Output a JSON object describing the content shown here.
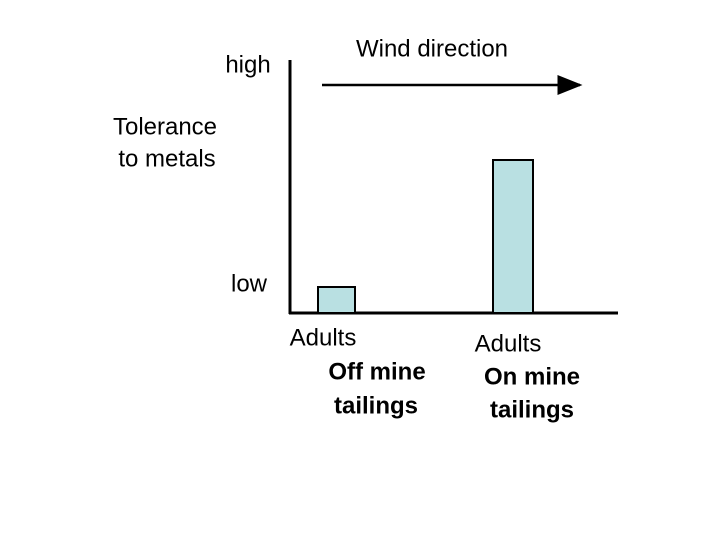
{
  "axis_labels": {
    "high": "high",
    "low": "low",
    "y_title": [
      "Tolerance",
      "to metals"
    ]
  },
  "wind": {
    "label": "Wind direction"
  },
  "groups": [
    {
      "label": [
        "Adults",
        "Off mine",
        "tailings"
      ]
    },
    {
      "label": [
        "Adults",
        "On mine",
        "tailings"
      ]
    }
  ]
}
